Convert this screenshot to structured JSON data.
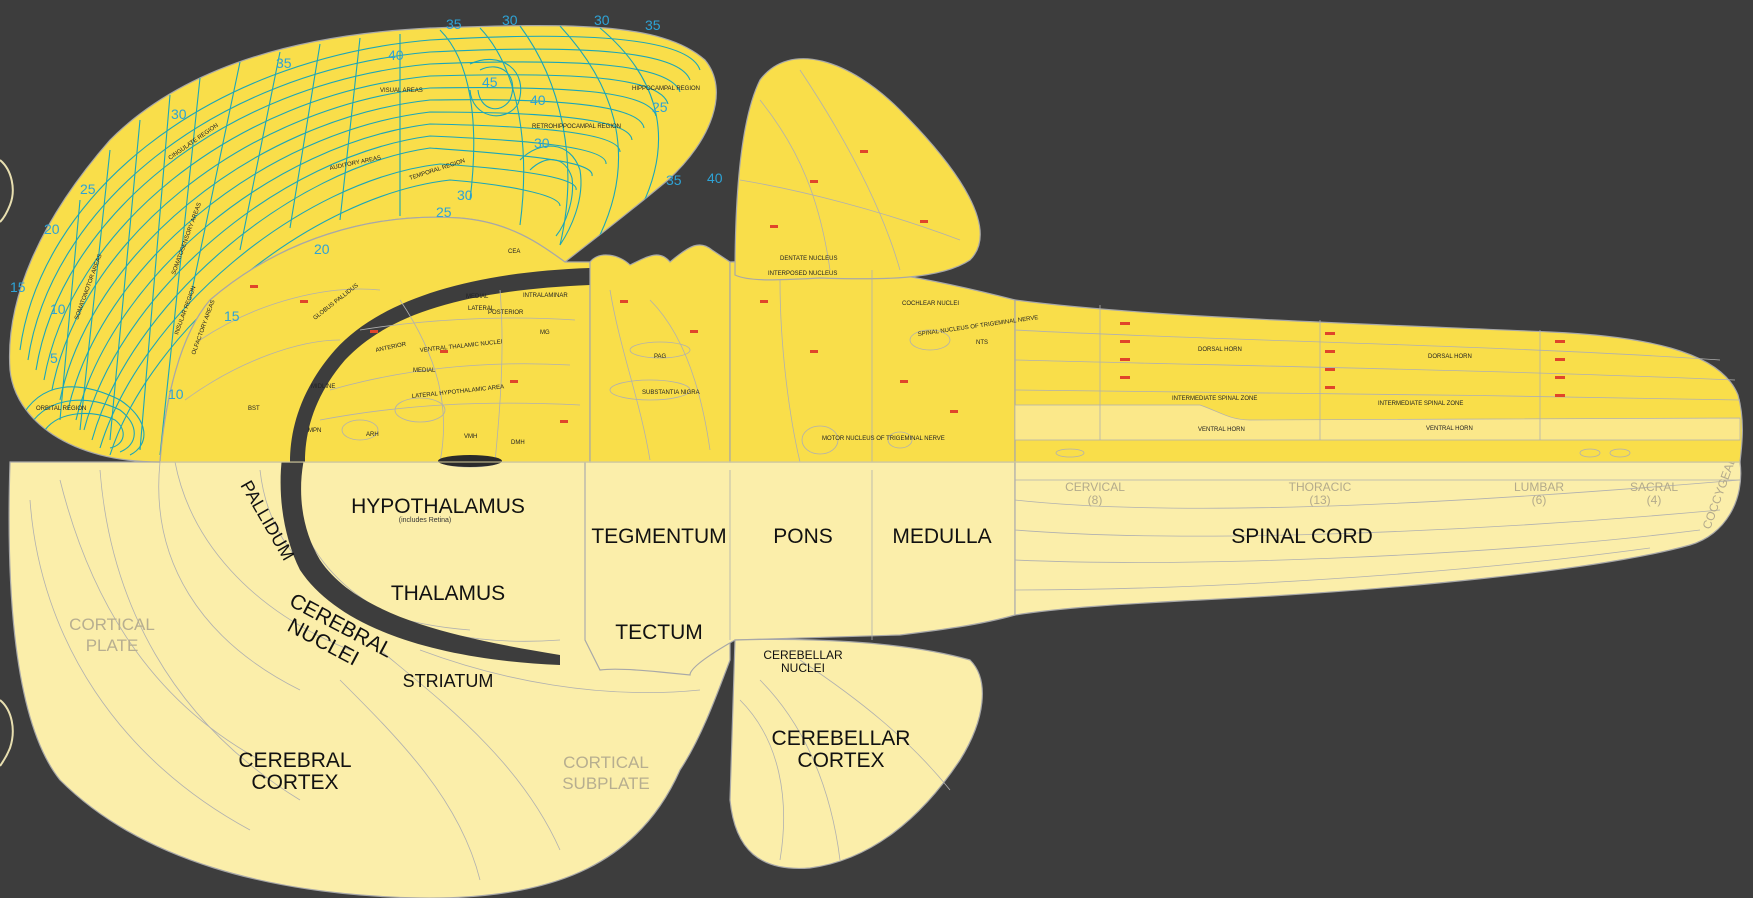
{
  "colors": {
    "background": "#3d3d3d",
    "upper_fill": "#f9de4a",
    "lower_fill": "#fbeeaa",
    "outline": "#a8a8a8",
    "contour": "#1ba6b8",
    "contour_number": "#2ea3d6",
    "red_labels": "#e0452a"
  },
  "lower_labels": {
    "hypothalamus": "HYPOTHALAMUS",
    "hypothalamus_note": "(includes Retina)",
    "pallidum": "PALLIDUM",
    "thalamus": "THALAMUS",
    "cerebral_nuclei_1": "CEREBRAL",
    "cerebral_nuclei_2": "NUCLEI",
    "striatum": "STRIATUM",
    "cortical_plate_1": "CORTICAL",
    "cortical_plate_2": "PLATE",
    "cerebral_cortex_1": "CEREBRAL",
    "cerebral_cortex_2": "CORTEX",
    "cortical_subplate_1": "CORTICAL",
    "cortical_subplate_2": "SUBPLATE",
    "tegmentum": "TEGMENTUM",
    "tectum": "TECTUM",
    "pons": "PONS",
    "medulla": "MEDULLA",
    "cerebellar_nuclei_1": "CEREBELLAR",
    "cerebellar_nuclei_2": "NUCLEI",
    "cerebellar_cortex_1": "CEREBELLAR",
    "cerebellar_cortex_2": "CORTEX",
    "spinal_cord": "SPINAL CORD",
    "cervical": "CERVICAL",
    "cervical_n": "(8)",
    "thoracic": "THORACIC",
    "thoracic_n": "(13)",
    "lumbar": "LUMBAR",
    "lumbar_n": "(6)",
    "sacral": "SACRAL",
    "sacral_n": "(4)",
    "coccygeal": "COCCYGEAL"
  },
  "upper_labels": {
    "visual_areas": "VISUAL AREAS",
    "auditory_areas": "AUDITORY AREAS",
    "temporal_region": "TEMPORAL REGION",
    "cingulate_region": "CINGULATE REGION",
    "somatomotor_areas": "SOMATOMOTOR AREAS",
    "somatosensory_areas": "SOMATOSENSORY AREAS",
    "olfactory_areas": "OLFACTORY AREAS",
    "insular_region": "INSULAR REGION",
    "orbital_region": "ORBITAL REGION",
    "hippocampal_region": "HIPPOCAMPAL REGION",
    "retrohippocampal_region": "RETROHIPPOCAMPAL REGION",
    "globus_pallidus": "GLOBUS PALLIDUS",
    "medial": "MEDIAL",
    "lateral": "LATERAL",
    "intralaminar": "INTRALAMINAR",
    "posterior": "POSTERIOR",
    "anterior": "ANTERIOR",
    "ventral_thalamic_nuclei": "VENTRAL THALAMIC NUCLEI",
    "lateral_hypothalamic_area": "LATERAL HYPOTHALAMIC AREA",
    "midline": "MIDLINE",
    "pag": "PAG",
    "substantia_nigra": "SUBSTANTIA NIGRA",
    "dentate_nucleus": "DENTATE NUCLEUS",
    "interposed_nucleus": "INTERPOSED NUCLEUS",
    "cochlear_nuclei": "COCHLEAR NUCLEI",
    "spinal_nucleus_trigeminal": "SPINAL NUCLEUS OF TRIGEMINAL NERVE",
    "motor_nucleus_trigeminal": "MOTOR NUCLEUS OF TRIGEMINAL NERVE",
    "dorsal_horn": "DORSAL HORN",
    "intermediate_spinal_zone": "INTERMEDIATE SPINAL ZONE",
    "ventral_horn": "VENTRAL HORN",
    "cea": "CEA",
    "bst": "BST",
    "mpn": "MPN",
    "arh": "ARH",
    "vmh": "VMH",
    "dmh": "DMH",
    "mg": "MG",
    "nts": "NTS"
  },
  "contour_numbers": [
    "35",
    "30",
    "30",
    "35",
    "35",
    "40",
    "30",
    "25",
    "20",
    "15",
    "10",
    "5",
    "10",
    "15",
    "20",
    "25",
    "30",
    "35",
    "40",
    "40",
    "45",
    "25",
    "30"
  ]
}
